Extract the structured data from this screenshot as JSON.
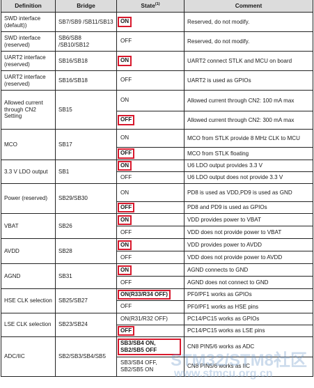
{
  "headers": {
    "definition": "Definition",
    "bridge": "Bridge",
    "state": "State",
    "state_note": "(1)",
    "comment": "Comment"
  },
  "rows": [
    {
      "definition": "SWD interface (default))",
      "bridge": "SB7/SB9 /SB11/SB13",
      "states": [
        {
          "value": "ON",
          "highlighted": true,
          "comment": "Reserved, do not modify."
        }
      ]
    },
    {
      "definition": "SWD interface (reserved)",
      "bridge": "SB6/SB8 /SB10/SB12",
      "states": [
        {
          "value": "OFF",
          "highlighted": false,
          "comment": "Reserved, do not modify."
        }
      ]
    },
    {
      "definition": "UART2 interface (reserved)",
      "bridge": "SB16/SB18",
      "states": [
        {
          "value": "ON",
          "highlighted": true,
          "comment": "UART2 connect STLK and MCU on board"
        }
      ]
    },
    {
      "definition": "UART2 interface (reserved)",
      "bridge": "SB16/SB18",
      "states": [
        {
          "value": "OFF",
          "highlighted": false,
          "comment": "UART2 is used as GPIOs"
        }
      ]
    },
    {
      "definition": "Allowed current through CN2 Setting",
      "bridge": "SB15",
      "states": [
        {
          "value": "ON",
          "highlighted": false,
          "comment": "Allowed current through CN2: 100 mA max"
        },
        {
          "value": "OFF",
          "highlighted": true,
          "comment": "Allowed current through CN2: 300 mA max"
        }
      ]
    },
    {
      "definition": "MCO",
      "bridge": "SB17",
      "states": [
        {
          "value": "ON",
          "highlighted": false,
          "comment": "MCO from STLK provide 8 MHz CLK to MCU"
        },
        {
          "value": "OFF",
          "highlighted": true,
          "comment": "MCO from STLK floating"
        }
      ]
    },
    {
      "definition": "3.3 V LDO output",
      "bridge": "SB1",
      "states": [
        {
          "value": "ON",
          "highlighted": true,
          "comment": "U6 LDO output provides 3.3 V"
        },
        {
          "value": "OFF",
          "highlighted": false,
          "comment": "U6 LDO output does not provide 3.3 V"
        }
      ]
    },
    {
      "definition": "Power (reserved)",
      "bridge": "SB29/SB30",
      "states": [
        {
          "value": "ON",
          "highlighted": false,
          "comment": "PD8 is used as VDD,PD9 is used as GND"
        },
        {
          "value": "OFF",
          "highlighted": true,
          "comment": "PD8 and PD9 is used as GPIOs"
        }
      ]
    },
    {
      "definition": "VBAT",
      "bridge": "SB26",
      "states": [
        {
          "value": "ON",
          "highlighted": true,
          "comment": "VDD provides power to VBAT"
        },
        {
          "value": "OFF",
          "highlighted": false,
          "comment": "VDD does not provide power to VBAT"
        }
      ]
    },
    {
      "definition": "AVDD",
      "bridge": "SB28",
      "states": [
        {
          "value": "ON",
          "highlighted": true,
          "comment": "VDD provides power to AVDD"
        },
        {
          "value": "OFF",
          "highlighted": false,
          "comment": "VDD does not provide power to AVDD"
        }
      ]
    },
    {
      "definition": "AGND",
      "bridge": "SB31",
      "states": [
        {
          "value": "ON",
          "highlighted": true,
          "comment": "AGND connects to GND"
        },
        {
          "value": "OFF",
          "highlighted": false,
          "comment": "AGND does not connect to GND"
        }
      ]
    },
    {
      "definition": "HSE CLK selection",
      "bridge": "SB25/SB27",
      "states": [
        {
          "value": "ON(R33/R34 OFF)",
          "highlighted": true,
          "comment": "PF0/PF1 works as GPIOs"
        },
        {
          "value": "OFF",
          "highlighted": false,
          "comment": "PF0/PF1 works as HSE pins"
        }
      ]
    },
    {
      "definition": "LSE CLK selection",
      "bridge": "SB23/SB24",
      "states": [
        {
          "value": "ON(R31/R32 OFF)",
          "highlighted": false,
          "comment": "PC14/PC15 works as GPIOs"
        },
        {
          "value": "OFF",
          "highlighted": true,
          "comment": "PC14/PC15 works as LSE pins"
        }
      ]
    },
    {
      "definition": "ADC/IIC",
      "bridge": "SB2/SB3/SB4/SB5",
      "states": [
        {
          "value": "SB3/SB4 ON, SB2/SB5 OFF",
          "highlighted": true,
          "comment": "CN8 PIN5/6 works as ADC"
        },
        {
          "value": "SB3/SB4 OFF, SB2/SB5 ON",
          "highlighted": false,
          "comment": "CN8 PIN5/6 works as IIC"
        }
      ]
    }
  ],
  "watermark": {
    "line1": "STM32/STM8社区",
    "line2": "www.stmcu.org.cn"
  },
  "colors": {
    "highlight": "#d8182c",
    "header_bg": "#dcdcdc",
    "watermark": "#7aa0cd"
  }
}
